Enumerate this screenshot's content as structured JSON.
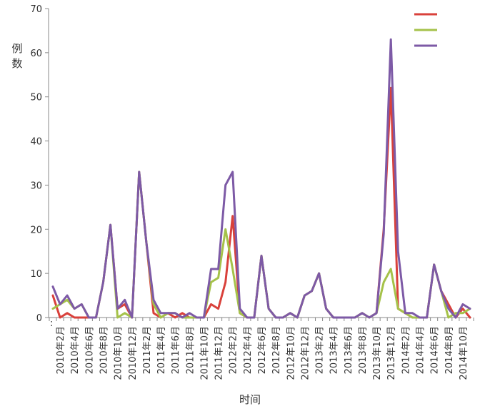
{
  "chart_data": {
    "type": "line",
    "title": "",
    "xlabel": "时间",
    "ylabel": "例数",
    "corner_mark": ":",
    "ylim": [
      0,
      70
    ],
    "yticks": [
      0,
      10,
      20,
      30,
      40,
      50,
      60,
      70
    ],
    "grid": false,
    "legend": "top-right",
    "x": [
      "2010年1月",
      "2010年2月",
      "2010年3月",
      "2010年4月",
      "2010年5月",
      "2010年6月",
      "2010年7月",
      "2010年8月",
      "2010年9月",
      "2010年10月",
      "2010年11月",
      "2010年12月",
      "2011年1月",
      "2011年2月",
      "2011年3月",
      "2011年4月",
      "2011年5月",
      "2011年6月",
      "2011年7月",
      "2011年8月",
      "2011年9月",
      "2011年10月",
      "2011年11月",
      "2011年12月",
      "2012年1月",
      "2012年2月",
      "2012年3月",
      "2012年4月",
      "2012年5月",
      "2012年6月",
      "2012年7月",
      "2012年8月",
      "2012年9月",
      "2012年10月",
      "2012年11月",
      "2012年12月",
      "2013年1月",
      "2013年2月",
      "2013年3月",
      "2013年4月",
      "2013年5月",
      "2013年6月",
      "2013年7月",
      "2013年8月",
      "2013年9月",
      "2013年10月",
      "2013年11月",
      "2013年12月",
      "2014年1月",
      "2014年2月",
      "2014年3月",
      "2014年4月",
      "2014年5月",
      "2014年6月",
      "2014年7月",
      "2014年8月",
      "2014年9月",
      "2014年10月",
      "2014年11月"
    ],
    "xticklabels": [
      "2010年2月",
      "2010年4月",
      "2010年6月",
      "2010年8月",
      "2010年10月",
      "2010年12月",
      "2011年2月",
      "2011年4月",
      "2011年6月",
      "2011年8月",
      "2011年10月",
      "2011年12月",
      "2012年2月",
      "2012年4月",
      "2012年6月",
      "2012年8月",
      "2012年10月",
      "2012年12月",
      "2013年2月",
      "2013年4月",
      "2013年6月",
      "2013年8月",
      "2013年10月",
      "2013年12月",
      "2014年2月",
      "2014年4月",
      "2014年6月",
      "2014年8月",
      "2014年10月"
    ],
    "series": [
      {
        "color": "#d9413b",
        "values": [
          5,
          0,
          1,
          0,
          0,
          0,
          0,
          8,
          21,
          2,
          3,
          0,
          33,
          17,
          1,
          0,
          1,
          0,
          1,
          0,
          0,
          0,
          3,
          2,
          8,
          23,
          1,
          0,
          0,
          14,
          2,
          0,
          0,
          1,
          0,
          5,
          6,
          10,
          2,
          0,
          0,
          0,
          0,
          1,
          0,
          1,
          20,
          52,
          2,
          1,
          0,
          0,
          0,
          12,
          6,
          3,
          0,
          2,
          0
        ]
      },
      {
        "color": "#a5c24a",
        "values": [
          2,
          3,
          4,
          2,
          3,
          0,
          0,
          8,
          21,
          0,
          1,
          0,
          33,
          17,
          3,
          0,
          1,
          1,
          0,
          0,
          0,
          0,
          8,
          9,
          20,
          11,
          1,
          0,
          0,
          14,
          2,
          0,
          0,
          1,
          0,
          5,
          6,
          10,
          2,
          0,
          0,
          0,
          0,
          1,
          0,
          1,
          8,
          11,
          2,
          1,
          0,
          0,
          0,
          12,
          6,
          0,
          1,
          1,
          2
        ]
      },
      {
        "color": "#7d5aa6",
        "values": [
          7,
          3,
          5,
          2,
          3,
          0,
          0,
          8,
          21,
          2,
          4,
          0,
          33,
          17,
          4,
          1,
          1,
          1,
          0,
          1,
          0,
          0,
          11,
          11,
          30,
          33,
          2,
          0,
          0,
          14,
          2,
          0,
          0,
          1,
          0,
          5,
          6,
          10,
          2,
          0,
          0,
          0,
          0,
          1,
          0,
          1,
          19,
          63,
          15,
          1,
          1,
          0,
          0,
          12,
          6,
          2,
          0,
          3,
          2
        ]
      }
    ]
  }
}
